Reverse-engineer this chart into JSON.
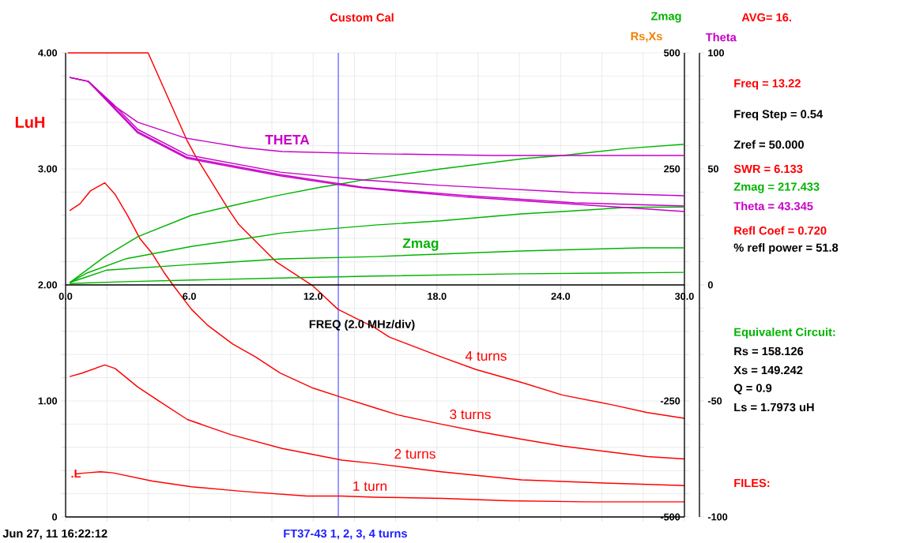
{
  "chart_data": {
    "type": "line",
    "title": "Custom Cal",
    "xlabel": "FREQ (2.0 MHz/div)",
    "ylabel": "LuH",
    "y2label": "Rs,Xs",
    "y3label": "Theta",
    "xlim": [
      0,
      30
    ],
    "ylim": [
      0,
      4
    ],
    "y2lim": [
      -500,
      500
    ],
    "y3lim": [
      -100,
      100
    ],
    "xticks": [
      {
        "value": 0,
        "label": "0.0"
      },
      {
        "value": 2,
        "label": null
      },
      {
        "value": 4,
        "label": null
      },
      {
        "value": 6,
        "label": "6.0"
      },
      {
        "value": 8,
        "label": null
      },
      {
        "value": 10,
        "label": null
      },
      {
        "value": 12,
        "label": "12.0"
      },
      {
        "value": 14,
        "label": null
      },
      {
        "value": 16,
        "label": null
      },
      {
        "value": 18,
        "label": "18.0"
      },
      {
        "value": 20,
        "label": null
      },
      {
        "value": 22,
        "label": null
      },
      {
        "value": 24,
        "label": "24.0"
      },
      {
        "value": 26,
        "label": null
      },
      {
        "value": 28,
        "label": null
      },
      {
        "value": 30,
        "label": "30.0"
      }
    ],
    "yticks": [
      0,
      {
        "value": 0.2,
        "label": null
      },
      {
        "value": 0.4,
        "label": null
      },
      {
        "value": 0.6,
        "label": null
      },
      {
        "value": 0.8,
        "label": null
      },
      {
        "value": 1,
        "label": "1.00"
      },
      {
        "value": 1.2,
        "label": null
      },
      {
        "value": 1.4,
        "label": null
      },
      {
        "value": 1.6,
        "label": null
      },
      {
        "value": 1.8,
        "label": null
      },
      {
        "value": 2,
        "label": "2.00"
      },
      {
        "value": 2.2,
        "label": null
      },
      {
        "value": 2.4,
        "label": null
      },
      {
        "value": 2.6,
        "label": null
      },
      {
        "value": 2.8,
        "label": null
      },
      {
        "value": 3,
        "label": "3.00"
      },
      {
        "value": 3.2,
        "label": null
      },
      {
        "value": 3.4,
        "label": null
      },
      {
        "value": 3.6,
        "label": null
      },
      {
        "value": 3.8,
        "label": null
      },
      {
        "value": 4,
        "label": "4.00"
      }
    ],
    "y2ticks": [
      -500,
      {
        "value": -450,
        "label": null
      },
      {
        "value": -400,
        "label": null
      },
      {
        "value": -350,
        "label": null
      },
      {
        "value": -300,
        "label": null
      },
      -250,
      {
        "value": -200,
        "label": null
      },
      {
        "value": -150,
        "label": null
      },
      {
        "value": -100,
        "label": null
      },
      {
        "value": -50,
        "label": null
      },
      {
        "value": 0,
        "label": null
      },
      {
        "value": 50,
        "label": null
      },
      {
        "value": 100,
        "label": null
      },
      {
        "value": 150,
        "label": null
      },
      {
        "value": 200,
        "label": null
      },
      250,
      {
        "value": 300,
        "label": null
      },
      {
        "value": 350,
        "label": null
      },
      {
        "value": 400,
        "label": null
      },
      {
        "value": 450,
        "label": null
      },
      500
    ],
    "y3ticks": [
      -100,
      {
        "value": -90,
        "label": null
      },
      {
        "value": -80,
        "label": null
      },
      {
        "value": -70,
        "label": null
      },
      {
        "value": -60,
        "label": null
      },
      -50,
      {
        "value": -40,
        "label": null
      },
      {
        "value": -30,
        "label": null
      },
      {
        "value": -20,
        "label": null
      },
      {
        "value": -10,
        "label": null
      },
      0,
      {
        "value": 10,
        "label": null
      },
      {
        "value": 20,
        "label": null
      },
      {
        "value": 30,
        "label": null
      },
      {
        "value": 40,
        "label": null
      },
      50,
      {
        "value": 60,
        "label": null
      },
      {
        "value": 70,
        "label": null
      },
      {
        "value": 80,
        "label": null
      },
      {
        "value": 90,
        "label": null
      },
      100
    ],
    "grid": true,
    "marker": "none",
    "line_style": "solid",
    "series": [
      {
        "name": "4 turns",
        "color": "#ff0000",
        "x": [
          0.1,
          4,
          5.9,
          6.3,
          7.9,
          8.4,
          10.2,
          12,
          13.2,
          15,
          15.7,
          18.2,
          19.9,
          22.1,
          24.1,
          26.4,
          28.2,
          30
        ],
        "values": [
          4,
          4,
          3.24,
          3.11,
          2.65,
          2.52,
          2.2,
          1.99,
          1.79,
          1.63,
          1.55,
          1.38,
          1.27,
          1.16,
          1.05,
          0.97,
          0.9,
          0.85
        ]
      },
      {
        "name": "3 turns",
        "color": "#ff0000",
        "x": [
          0.2,
          0.7,
          1.2,
          1.9,
          2.4,
          3.0,
          3.6,
          4.2,
          4.8,
          5.2,
          6.1,
          6.9,
          8.1,
          9.2,
          10.4,
          12,
          13.4,
          15,
          16.1,
          18.2,
          20.2,
          22.1,
          24.1,
          26.4,
          28.2,
          30
        ],
        "values": [
          2.64,
          2.7,
          2.81,
          2.88,
          2.78,
          2.6,
          2.4,
          2.27,
          2.1,
          2.0,
          1.79,
          1.65,
          1.49,
          1.38,
          1.24,
          1.11,
          1.03,
          0.94,
          0.88,
          0.8,
          0.73,
          0.67,
          0.61,
          0.56,
          0.52,
          0.5
        ]
      },
      {
        "name": "2 turns",
        "color": "#ff0000",
        "x": [
          0.2,
          0.8,
          1.9,
          2.4,
          3.5,
          4.6,
          5.9,
          8,
          10.5,
          13.4,
          15,
          18.2,
          22.1,
          26.4,
          30
        ],
        "values": [
          1.21,
          1.24,
          1.31,
          1.28,
          1.12,
          0.99,
          0.84,
          0.71,
          0.59,
          0.49,
          0.46,
          0.39,
          0.32,
          0.29,
          0.27
        ]
      },
      {
        "name": "1 turn",
        "color": "#ff0000",
        "x": [
          0.5,
          1,
          1.7,
          2.3,
          4.2,
          6.1,
          8.6,
          11.7,
          13.4,
          15,
          18.3,
          21.5,
          25.3,
          30
        ],
        "values": [
          0.37,
          0.38,
          0.39,
          0.38,
          0.31,
          0.26,
          0.22,
          0.18,
          0.18,
          0.17,
          0.16,
          0.14,
          0.13,
          0.13
        ]
      },
      {
        "color": "#00b400",
        "axis": "y2",
        "x": [
          0.2,
          1.9,
          3.5,
          6.1,
          7.8,
          10.2,
          12.4,
          13.4,
          14.4,
          18.2,
          22.2,
          24.1,
          27.2,
          30
        ],
        "values": [
          5,
          61,
          104,
          150,
          168,
          192,
          211,
          218,
          226,
          250,
          272,
          279,
          294,
          303
        ]
      },
      {
        "color": "#00b400",
        "axis": "y2",
        "x": [
          0.2,
          1,
          2.9,
          6.1,
          8.6,
          10.5,
          15,
          18.2,
          22.1,
          24.1,
          27.2,
          30
        ],
        "values": [
          5,
          25,
          56,
          83,
          99,
          112,
          129,
          138,
          153,
          158,
          167,
          168
        ]
      },
      {
        "color": "#00b400",
        "axis": "y2",
        "x": [
          0.2,
          1,
          2,
          6.1,
          10.5,
          15,
          22.1,
          28,
          30
        ],
        "values": [
          5,
          17,
          32,
          44,
          56,
          61,
          73,
          80,
          80
        ]
      },
      {
        "color": "#00b400",
        "axis": "y2",
        "x": [
          0.2,
          2.9,
          10.5,
          15,
          22.1,
          30
        ],
        "values": [
          3,
          7,
          15,
          19,
          24,
          27
        ]
      },
      {
        "color": "#c800c8",
        "axis": "y3",
        "x": [
          0.2,
          1.1,
          2.3,
          3.5,
          5.8,
          8.6,
          10.5,
          15,
          20.8,
          30
        ],
        "values": [
          89.4,
          87.7,
          77.5,
          70.1,
          63.3,
          59.2,
          57.5,
          56.5,
          55.8,
          55.8
        ]
      },
      {
        "color": "#c800c8",
        "axis": "y3",
        "x": [
          0.2,
          1.1,
          2.3,
          3.5,
          5.9,
          10.4,
          13.4,
          14.4,
          18.2,
          24.7,
          30
        ],
        "values": [
          89.4,
          87.7,
          78,
          67,
          56,
          48.6,
          46,
          45.2,
          42.9,
          39.8,
          38.4
        ]
      },
      {
        "color": "#c800c8",
        "axis": "y3",
        "x": [
          0.2,
          1.1,
          2.3,
          3.5,
          5.9,
          10.4,
          13.4,
          14.4,
          19.5,
          24.7,
          30
        ],
        "values": [
          89.4,
          87.7,
          77,
          66,
          55,
          47.5,
          43.5,
          42.1,
          38.4,
          35.4,
          34.0
        ]
      },
      {
        "color": "#c800c8",
        "axis": "y3",
        "x": [
          0.2,
          1.1,
          2.3,
          3.5,
          5.9,
          10.4,
          13.4,
          14.4,
          19.5,
          24.7,
          30
        ],
        "values": [
          89.4,
          87.7,
          76.5,
          65.5,
          54.5,
          47,
          43,
          41.8,
          37.8,
          34.8,
          31.6
        ]
      }
    ],
    "ref_lines": [
      {
        "axis": "x",
        "value": 13.22,
        "color": "#4040ff"
      }
    ],
    "annotations": [
      "Zmag",
      "AVG= 16.",
      "Freq = 13.22",
      "Freq Step = 0.54",
      "Zref = 50.000",
      "SWR = 6.133",
      "Zmag = 217.433",
      "Theta = 43.345",
      "Refl Coef = 0.720",
      "% refl power = 51.8",
      "Equivalent Circuit:",
      "Rs = 158.126",
      "Xs = 149.242",
      "Q = 0.9",
      "Ls = 1.7973 uH",
      "FILES:",
      "Jun 27, 11 16:22:12",
      "FT37-43 1, 2, 3, 4 turns",
      "THETA",
      "Zmag",
      ".L"
    ]
  }
}
